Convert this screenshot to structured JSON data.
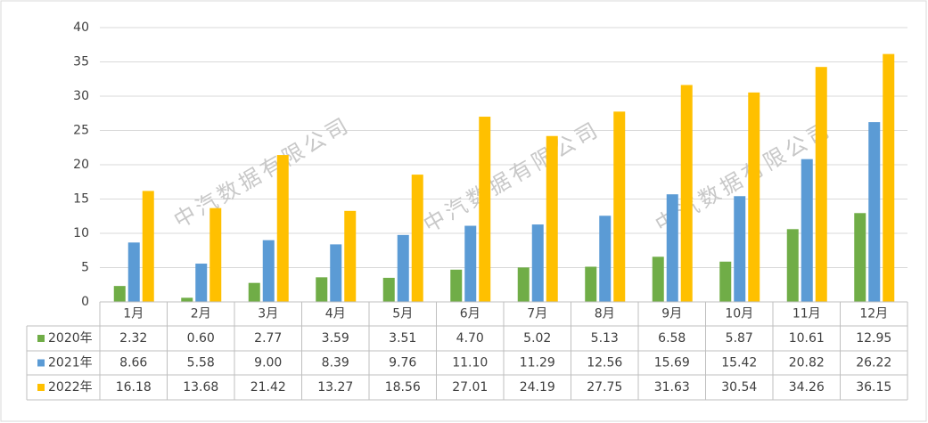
{
  "chart_data": {
    "type": "bar",
    "watermark": "中汽数据有限公司",
    "categories": [
      "1月",
      "2月",
      "3月",
      "4月",
      "5月",
      "6月",
      "7月",
      "8月",
      "9月",
      "10月",
      "11月",
      "12月"
    ],
    "series": [
      {
        "name": "2020年",
        "color": "#70ad47",
        "values": [
          2.32,
          0.6,
          2.77,
          3.59,
          3.51,
          4.7,
          5.02,
          5.13,
          6.58,
          5.87,
          10.61,
          12.95
        ],
        "value_labels": [
          "2.32",
          "0.60",
          "2.77",
          "3.59",
          "3.51",
          "4.70",
          "5.02",
          "5.13",
          "6.58",
          "5.87",
          "10.61",
          "12.95"
        ]
      },
      {
        "name": "2021年",
        "color": "#5b9bd5",
        "values": [
          8.66,
          5.58,
          9,
          8.39,
          9.76,
          11.1,
          11.29,
          12.56,
          15.69,
          15.42,
          20.82,
          26.22
        ],
        "value_labels": [
          "8.66",
          "5.58",
          "9.00",
          "8.39",
          "9.76",
          "11.10",
          "11.29",
          "12.56",
          "15.69",
          "15.42",
          "20.82",
          "26.22"
        ]
      },
      {
        "name": "2022年",
        "color": "#ffc000",
        "values": [
          16.18,
          13.68,
          21.42,
          13.27,
          18.56,
          27.01,
          24.19,
          27.75,
          31.63,
          30.54,
          34.26,
          36.15
        ],
        "value_labels": [
          "16.18",
          "13.68",
          "21.42",
          "13.27",
          "18.56",
          "27.01",
          "24.19",
          "27.75",
          "31.63",
          "30.54",
          "34.26",
          "36.15"
        ]
      }
    ],
    "ylim": [
      0,
      40
    ],
    "yticks": [
      0,
      5,
      10,
      15,
      20,
      25,
      30,
      35,
      40
    ],
    "grid": true
  }
}
